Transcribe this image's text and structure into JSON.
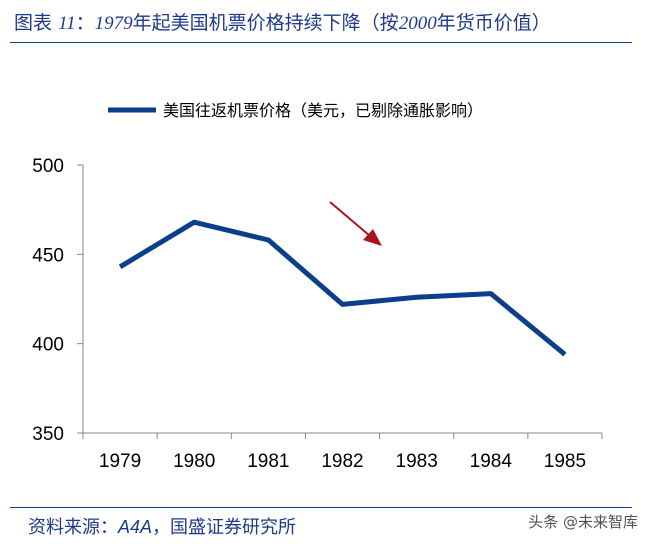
{
  "header": {
    "title_prefix": "图表",
    "title_number": "11",
    "title_sep": "：",
    "title_year_start": "1979",
    "title_mid": "年起美国机票价格持续下降（按",
    "title_year_base": "2000",
    "title_end": "年货币价值）"
  },
  "footer": {
    "source_label": "资料来源：",
    "source_a4a": "A4A",
    "source_rest": "，国盛证券研究所",
    "watermark": "头条 @未来智库"
  },
  "colors": {
    "line": "#0b3f8c",
    "arrow": "#a8161b",
    "title": "#1f3a8a"
  },
  "chart_data": {
    "type": "line",
    "categories": [
      "1979",
      "1980",
      "1981",
      "1982",
      "1983",
      "1984",
      "1985"
    ],
    "series": [
      {
        "name": "美国往返机票价格（美元，已剔除通胀影响）",
        "values": [
          443,
          468,
          458,
          422,
          426,
          428,
          394
        ]
      }
    ],
    "ylim": [
      350,
      500
    ],
    "yticks": [
      "500",
      "450",
      "400",
      "350"
    ],
    "annotation": "downward-arrow",
    "legend_position": "top",
    "grid": false
  }
}
